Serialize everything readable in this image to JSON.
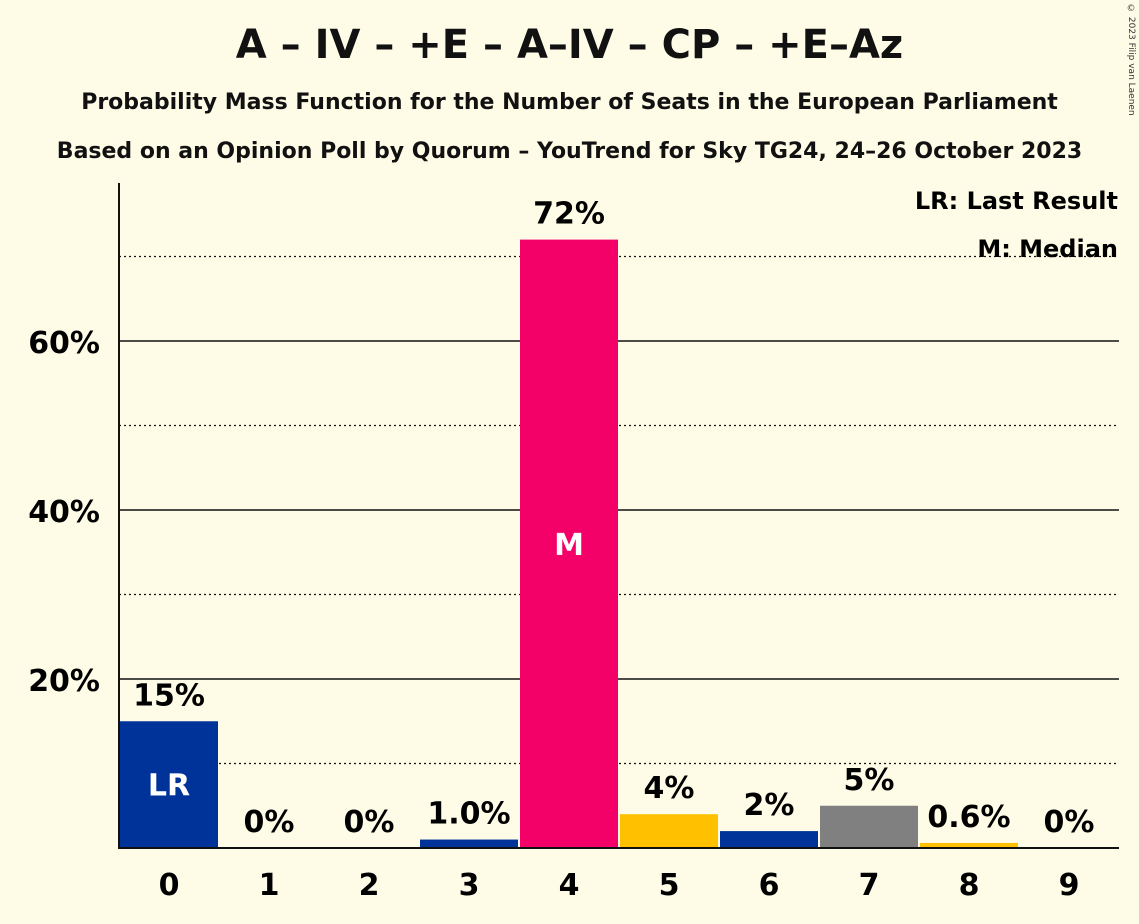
{
  "title": "A – IV – +E – A–IV – CP – +E–Az",
  "subtitle1": "Probability Mass Function for the Number of Seats in the European Parliament",
  "subtitle2": "Based on an Opinion Poll by Quorum – YouTrend for Sky TG24, 24–26 October 2023",
  "copyright": "© 2023 Filip van Laenen",
  "legend": {
    "last_result": "LR: Last Result",
    "median": "M: Median"
  },
  "chart_data": {
    "type": "bar",
    "title": "A – IV – +E – A–IV – CP – +E–Az",
    "xlabel": "",
    "ylabel": "",
    "categories": [
      "0",
      "1",
      "2",
      "3",
      "4",
      "5",
      "6",
      "7",
      "8",
      "9"
    ],
    "values": [
      15,
      0,
      0,
      1.0,
      72,
      4,
      2,
      5,
      0.6,
      0
    ],
    "value_labels": [
      "15%",
      "0%",
      "0%",
      "1.0%",
      "72%",
      "4%",
      "2%",
      "5%",
      "0.6%",
      "0%"
    ],
    "bar_colors": [
      "#003399",
      "#003399",
      "#003399",
      "#003399",
      "#F40069",
      "#FFC000",
      "#003399",
      "#808080",
      "#FFC000",
      "#003399"
    ],
    "y_ticks": [
      "20%",
      "40%",
      "60%"
    ],
    "y_tick_values": [
      20,
      40,
      60
    ],
    "ylim": [
      0,
      79
    ],
    "grid": {
      "solid_every": 20,
      "dotted_every": 10
    },
    "last_result_index": 0,
    "last_result_label": "LR",
    "median_index": 4,
    "median_label": "M"
  }
}
